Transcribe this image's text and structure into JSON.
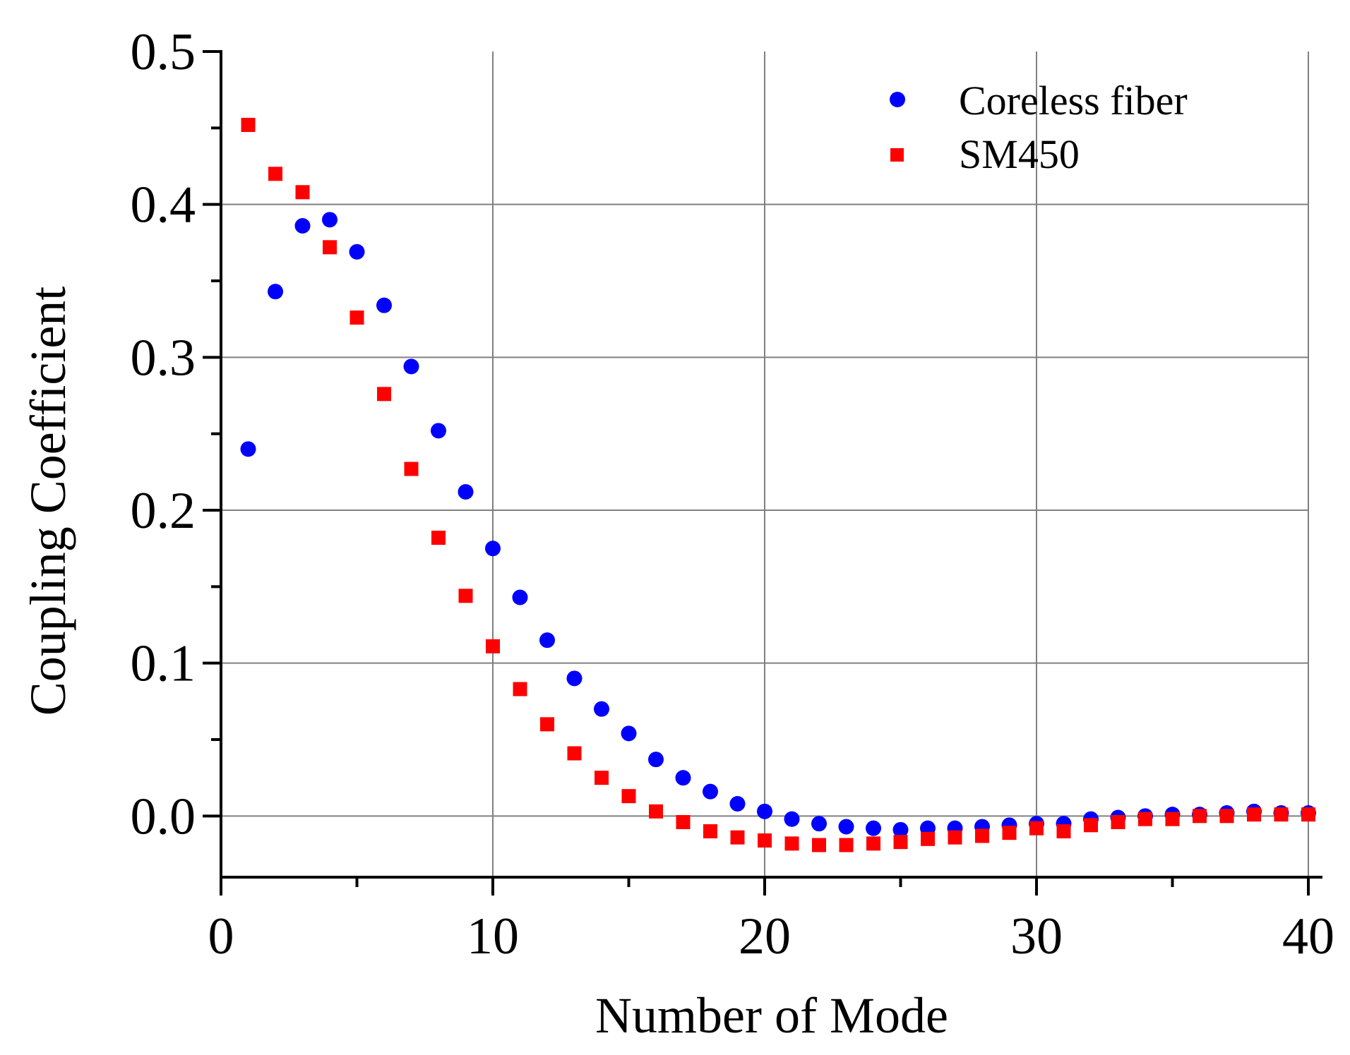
{
  "chart_data": {
    "type": "scatter",
    "title": "",
    "xlabel": "Number of Mode",
    "ylabel": "Coupling Coefficient",
    "xlim": [
      0,
      40
    ],
    "ylim": [
      -0.04,
      0.5
    ],
    "grid": true,
    "legend_position": "top-right",
    "x_ticks": [
      {
        "value": 0,
        "label": "0"
      },
      {
        "value": 10,
        "label": "10"
      },
      {
        "value": 20,
        "label": "20"
      },
      {
        "value": 30,
        "label": "30"
      },
      {
        "value": 40,
        "label": "40"
      }
    ],
    "y_ticks": [
      {
        "value": 0.0,
        "label": "0.0"
      },
      {
        "value": 0.1,
        "label": "0.1"
      },
      {
        "value": 0.2,
        "label": "0.2"
      },
      {
        "value": 0.3,
        "label": "0.3"
      },
      {
        "value": 0.4,
        "label": "0.4"
      },
      {
        "value": 0.5,
        "label": "0.5"
      }
    ],
    "x": [
      1,
      2,
      3,
      4,
      5,
      6,
      7,
      8,
      9,
      10,
      11,
      12,
      13,
      14,
      15,
      16,
      17,
      18,
      19,
      20,
      21,
      22,
      23,
      24,
      25,
      26,
      27,
      28,
      29,
      30,
      31,
      32,
      33,
      34,
      35,
      36,
      37,
      38,
      39,
      40
    ],
    "series": [
      {
        "name": "Coreless fiber",
        "marker": "circle",
        "color": "#0000ff",
        "values": [
          0.24,
          0.343,
          0.386,
          0.39,
          0.369,
          0.334,
          0.294,
          0.252,
          0.212,
          0.175,
          0.143,
          0.115,
          0.09,
          0.07,
          0.054,
          0.037,
          0.025,
          0.016,
          0.008,
          0.003,
          -0.002,
          -0.005,
          -0.007,
          -0.008,
          -0.009,
          -0.008,
          -0.008,
          -0.007,
          -0.006,
          -0.005,
          -0.005,
          -0.002,
          -0.001,
          0.0,
          0.001,
          0.001,
          0.002,
          0.003,
          0.002,
          0.002
        ]
      },
      {
        "name": "SM450",
        "marker": "square",
        "color": "#ff0000",
        "values": [
          0.452,
          0.42,
          0.408,
          0.372,
          0.326,
          0.276,
          0.227,
          0.182,
          0.144,
          0.111,
          0.083,
          0.06,
          0.041,
          0.025,
          0.013,
          0.003,
          -0.004,
          -0.01,
          -0.014,
          -0.016,
          -0.018,
          -0.019,
          -0.019,
          -0.018,
          -0.017,
          -0.015,
          -0.014,
          -0.013,
          -0.011,
          -0.008,
          -0.01,
          -0.006,
          -0.004,
          -0.002,
          -0.002,
          0.0,
          0.0,
          0.001,
          0.001,
          0.001
        ]
      }
    ]
  }
}
